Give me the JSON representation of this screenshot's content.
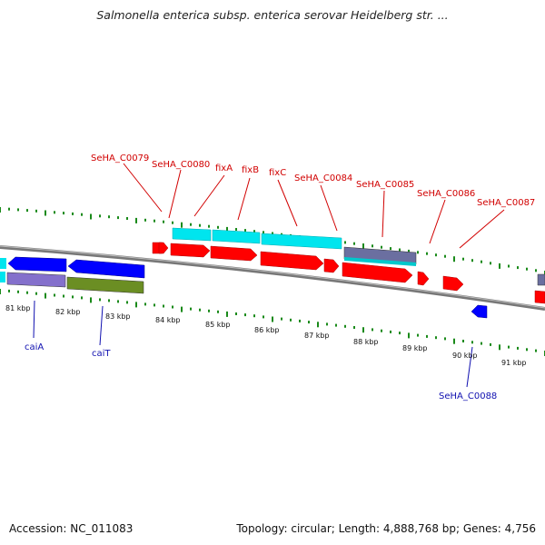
{
  "title": "Salmonella enterica subsp. enterica serovar Heidelberg str. ...",
  "footer": {
    "accession": "Accession: NC_011083",
    "topology": "Topology: circular; Length: 4,888,768 bp; Genes: 4,756"
  },
  "scale": {
    "ticks": [
      "81 kbp",
      "82 kbp",
      "83 kbp",
      "84 kbp",
      "85 kbp",
      "86 kbp",
      "87 kbp",
      "88 kbp",
      "89 kbp",
      "90 kbp",
      "91 kbp"
    ]
  },
  "gene_labels_top": [
    "SeHA_C0079",
    "SeHA_C0080",
    "fixA",
    "fixB",
    "fixC",
    "SeHA_C0084",
    "SeHA_C0085",
    "SeHA_C0086",
    "SeHA_C0087"
  ],
  "gene_labels_bottom": [
    "caiA",
    "caiT",
    "SeHA_C0088"
  ],
  "colors": {
    "forward_cds": "#ff0000",
    "reverse_cds": "#0000ff",
    "cyan_feature": "#00e5ee",
    "purple_feature": "#8470cc",
    "olive_feature": "#6b8e23",
    "tick_green": "#1a8a1a",
    "label_red": "#d10000",
    "label_blue": "#1010b0",
    "backbone": "#888888"
  }
}
